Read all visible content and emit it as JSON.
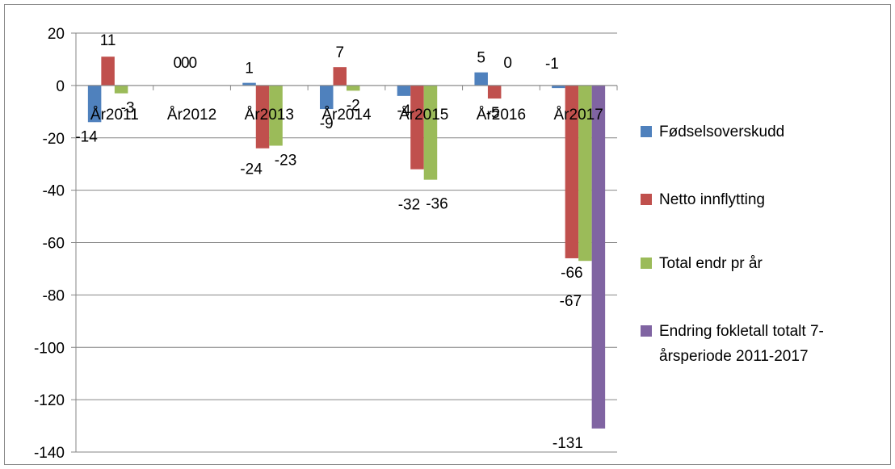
{
  "chart_data": {
    "type": "bar",
    "categories": [
      "År2011",
      "År2012",
      "År2013",
      "År2014",
      "År2015",
      "År2016",
      "År2017"
    ],
    "series": [
      {
        "name": "Fødselsoverskudd",
        "color": "#4f81bd",
        "values": [
          -14,
          0,
          1,
          -9,
          -4,
          5,
          -1
        ]
      },
      {
        "name": "Netto innflytting",
        "color": "#c0504d",
        "values": [
          11,
          0,
          -24,
          7,
          -32,
          -5,
          -66
        ]
      },
      {
        "name": "Total endr pr år",
        "color": "#9bbb59",
        "values": [
          -3,
          0,
          -23,
          -2,
          -36,
          0,
          -67
        ]
      },
      {
        "name": "Endring fokletall totalt 7-årsperiode 2011-2017",
        "name_lines": [
          "Endring fokletall totalt 7-",
          "årsperiode 2011-2017"
        ],
        "color": "#8064a2",
        "values": [
          null,
          null,
          null,
          null,
          null,
          null,
          -131
        ]
      }
    ],
    "ylim": [
      -140,
      20
    ],
    "yticks": [
      20,
      0,
      -20,
      -40,
      -60,
      -80,
      -100,
      -120,
      -140
    ],
    "grid": true,
    "legend_position": "right",
    "data_labels": [
      [
        "-14",
        "0",
        "1",
        "-9",
        "-4",
        "5",
        "-1"
      ],
      [
        "11",
        "0",
        "-24",
        "7",
        "-32",
        "-5",
        "-66"
      ],
      [
        "-3",
        "0",
        "-23",
        "-2",
        "-36",
        "0",
        "-67"
      ],
      [
        null,
        null,
        null,
        null,
        null,
        null,
        "-131"
      ]
    ]
  }
}
